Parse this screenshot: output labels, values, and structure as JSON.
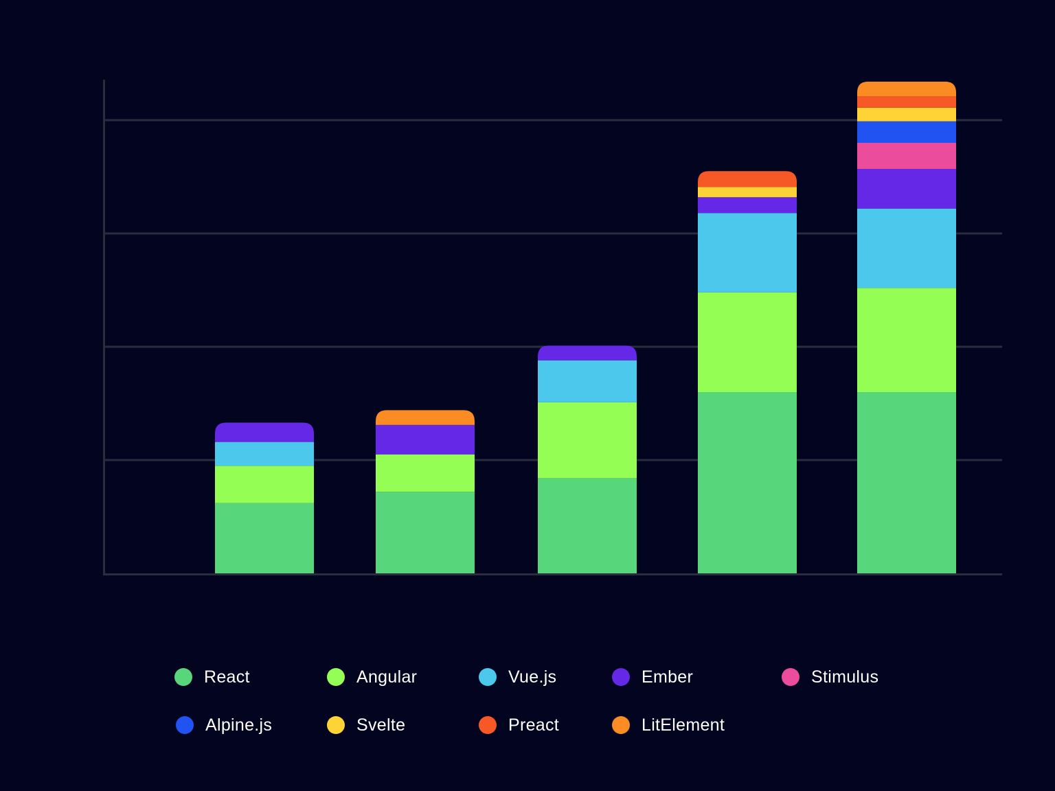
{
  "chart_data": {
    "type": "bar",
    "stacked": true,
    "categories": [
      "",
      "",
      "",
      "",
      ""
    ],
    "series": [
      {
        "name": "React",
        "color": "#58d67c",
        "values": [
          6.2,
          7.2,
          8.4,
          16.0,
          16.0
        ]
      },
      {
        "name": "Angular",
        "color": "#94fe55",
        "values": [
          3.3,
          3.3,
          6.7,
          8.8,
          9.2
        ]
      },
      {
        "name": "Vue.js",
        "color": "#4bc8ec",
        "values": [
          2.1,
          0,
          3.7,
          7.0,
          7.0
        ]
      },
      {
        "name": "Ember",
        "color": "#6628e7",
        "values": [
          1.7,
          2.6,
          1.3,
          1.4,
          3.5
        ]
      },
      {
        "name": "Stimulus",
        "color": "#ec4c9c",
        "values": [
          0,
          0,
          0,
          0,
          2.3
        ]
      },
      {
        "name": "Alpine.js",
        "color": "#2053f1",
        "values": [
          0,
          0,
          0,
          0,
          1.9
        ]
      },
      {
        "name": "Svelte",
        "color": "#fdd336",
        "values": [
          0,
          0,
          0,
          0.9,
          1.2
        ]
      },
      {
        "name": "Preact",
        "color": "#f65925",
        "values": [
          0,
          0,
          0,
          1.4,
          1.0
        ]
      },
      {
        "name": "LitElement",
        "color": "#fb8b23",
        "values": [
          0,
          1.3,
          0,
          0,
          1.3
        ]
      }
    ],
    "ylim": [
      0,
      43.5
    ],
    "gridlines": [
      10,
      20,
      30,
      40
    ],
    "grid": true,
    "legend_position": "bottom",
    "title": "",
    "xlabel": "",
    "ylabel": ""
  }
}
